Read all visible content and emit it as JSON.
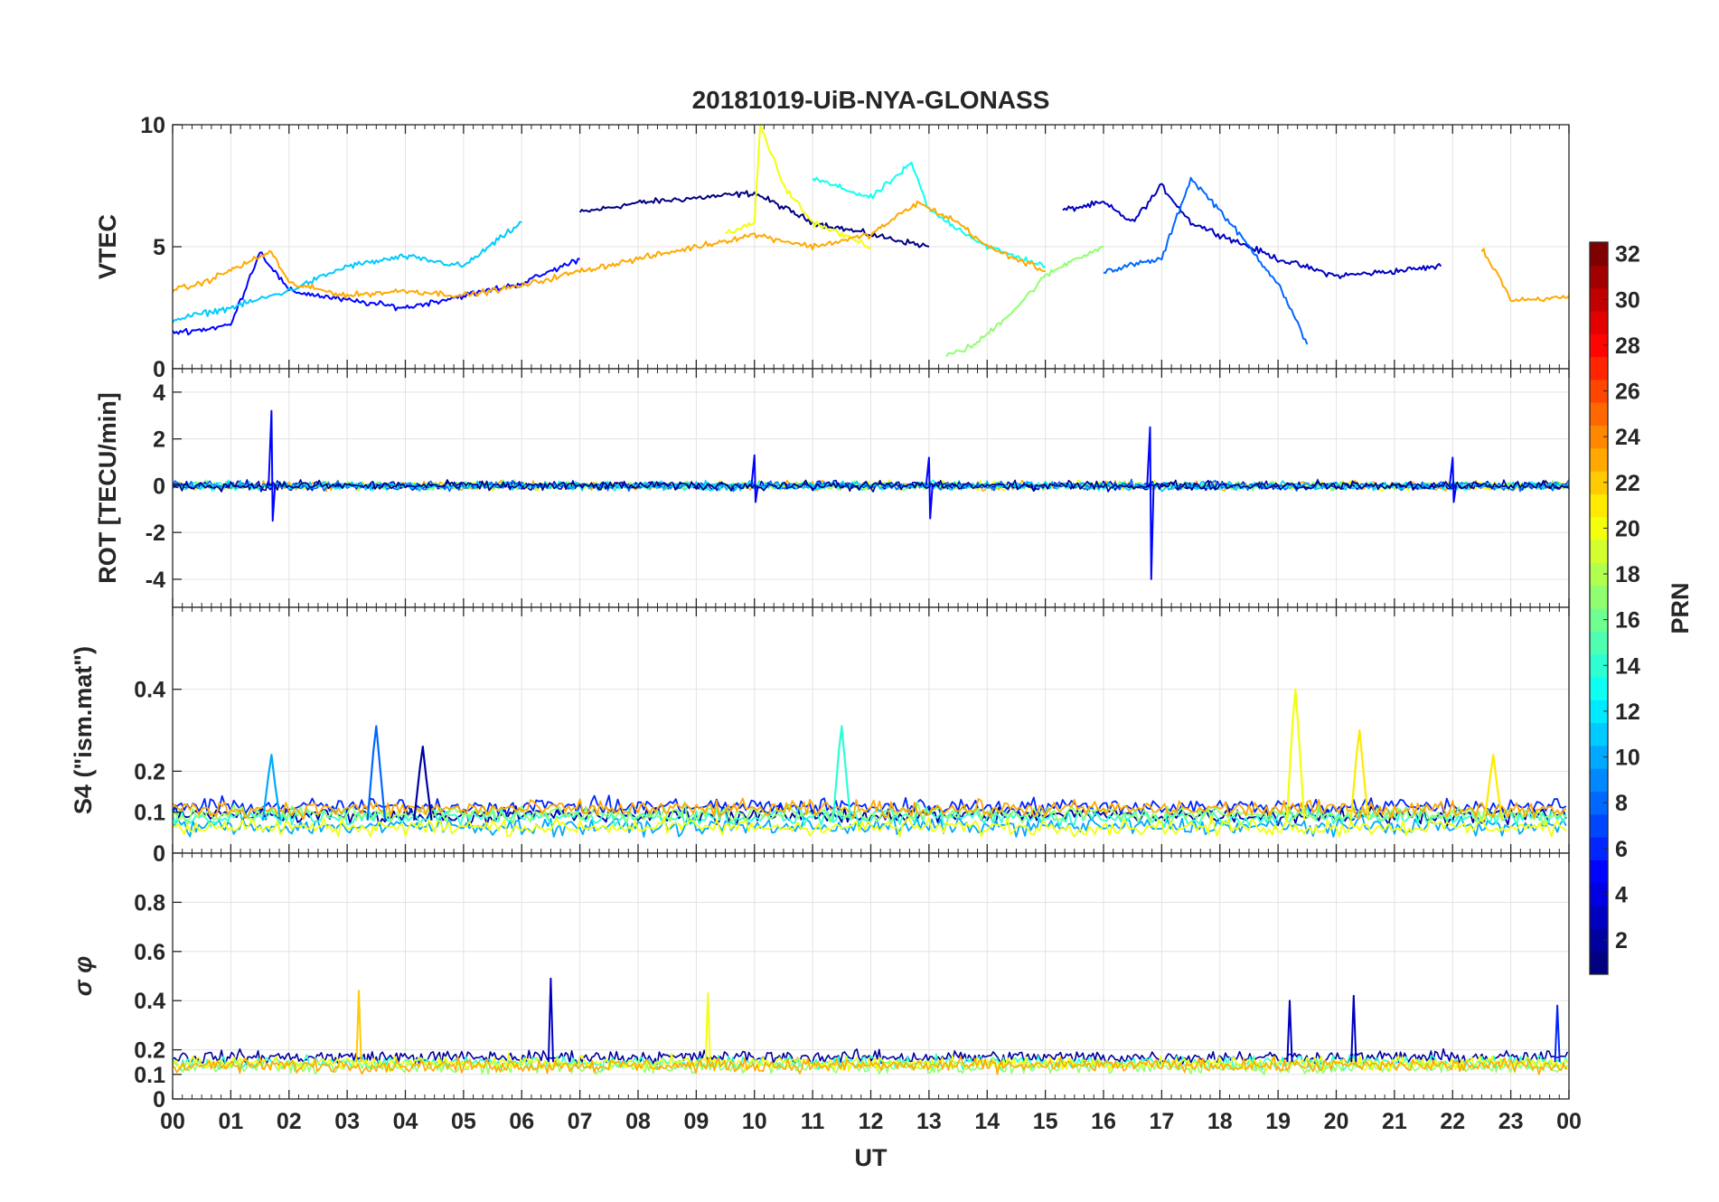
{
  "figure": {
    "title": "20181019-UiB-NYA-GLONASS",
    "xlabel": "UT",
    "x_ticks": [
      "00",
      "01",
      "02",
      "03",
      "04",
      "05",
      "06",
      "07",
      "08",
      "09",
      "10",
      "11",
      "12",
      "13",
      "14",
      "15",
      "16",
      "17",
      "18",
      "19",
      "20",
      "21",
      "22",
      "23",
      "00"
    ]
  },
  "colorbar": {
    "label": "PRN",
    "range": [
      1,
      32
    ],
    "ticks": [
      2,
      4,
      6,
      8,
      10,
      12,
      14,
      16,
      18,
      20,
      22,
      24,
      26,
      28,
      30,
      32
    ],
    "colormap": "jet",
    "levels": 32
  },
  "chart_data": [
    {
      "type": "line",
      "name": "vtec",
      "ylabel": "VTEC",
      "ylim": [
        0,
        10
      ],
      "yticks": [
        0,
        5,
        10
      ],
      "grid": true,
      "x_range_hours": [
        0,
        24
      ],
      "series_note": "multiple PRN traces (GLONASS), colored by PRN",
      "series": [
        {
          "prn": 1,
          "x": [
            7.0,
            8,
            9,
            10,
            11,
            12,
            13
          ],
          "values": [
            6.4,
            6.8,
            7.0,
            7.2,
            6.0,
            5.5,
            5.0
          ]
        },
        {
          "prn": 3,
          "x": [
            15.3,
            16,
            16.5,
            17,
            17.5,
            18,
            19,
            20,
            21,
            21.8
          ],
          "values": [
            6.5,
            6.8,
            6.0,
            7.5,
            6.0,
            5.5,
            4.5,
            3.8,
            4.0,
            4.2
          ]
        },
        {
          "prn": 5,
          "x": [
            0,
            0.5,
            1,
            1.5,
            2,
            2.5,
            3,
            4,
            5,
            6,
            7
          ],
          "values": [
            1.5,
            1.6,
            1.8,
            4.8,
            3.2,
            3.0,
            2.8,
            2.5,
            3.0,
            3.5,
            4.5
          ]
        },
        {
          "prn": 8,
          "x": [
            16,
            17,
            17.5,
            18,
            18.5,
            19,
            19.5
          ],
          "values": [
            4.0,
            4.5,
            7.8,
            6.5,
            5.0,
            3.5,
            1.0
          ]
        },
        {
          "prn": 11,
          "x": [
            0,
            1,
            2,
            3,
            4,
            5,
            6
          ],
          "values": [
            2.0,
            2.5,
            3.2,
            4.2,
            4.6,
            4.2,
            6.0
          ]
        },
        {
          "prn": 13,
          "x": [
            11,
            12,
            12.7,
            13,
            14,
            15
          ],
          "values": [
            7.8,
            7.0,
            8.4,
            6.5,
            5.0,
            4.2
          ]
        },
        {
          "prn": 17,
          "x": [
            13.3,
            13.8,
            14.5,
            15,
            15.5,
            16
          ],
          "values": [
            0.5,
            1.0,
            2.5,
            3.8,
            4.5,
            5.0
          ]
        },
        {
          "prn": 20,
          "x": [
            9.5,
            10,
            10.1,
            10.5,
            11,
            12
          ],
          "values": [
            5.5,
            6.0,
            10.0,
            7.5,
            6.0,
            5.0
          ]
        },
        {
          "prn": 23,
          "x": [
            0,
            0.5,
            1.7,
            2,
            3,
            4,
            5,
            6,
            7,
            8,
            9,
            10,
            11,
            12,
            12.8,
            13.5,
            14,
            15
          ],
          "values": [
            3.2,
            3.5,
            4.8,
            3.5,
            3.0,
            3.2,
            3.0,
            3.4,
            4.0,
            4.5,
            5.0,
            5.5,
            5.0,
            5.5,
            6.8,
            6.0,
            5.0,
            4.0
          ]
        },
        {
          "prn": 23,
          "x": [
            22.5,
            22.8,
            23,
            23.5,
            24
          ],
          "values": [
            4.9,
            3.8,
            2.8,
            2.8,
            3.0
          ]
        }
      ]
    },
    {
      "type": "line",
      "name": "rot",
      "ylabel": "ROT [TECU/min]",
      "ylim": [
        -5.2,
        5
      ],
      "yticks": [
        -4,
        -2,
        0,
        2,
        4
      ],
      "grid": true,
      "series_note": "rate of TEC, mostly within ±0.5 with spikes",
      "spikes": [
        {
          "x": 1.7,
          "max": 3.2,
          "min": -1.5
        },
        {
          "x": 10.0,
          "max": 1.3,
          "min": -0.7
        },
        {
          "x": 13.0,
          "max": 1.2,
          "min": -1.4
        },
        {
          "x": 16.8,
          "max": 2.5,
          "min": -4.0
        },
        {
          "x": 22.0,
          "max": 1.2,
          "min": -0.7
        }
      ]
    },
    {
      "type": "line",
      "name": "s4",
      "ylabel": "S4 (\"ism.mat\")",
      "ylim": [
        0,
        0.6
      ],
      "yticks": [
        0,
        0.1,
        0.2,
        0.4
      ],
      "grid": true,
      "series_note": "amplitude scintillation, baseline ~0.05-0.15 with peaks",
      "peaks": [
        {
          "x": 1.7,
          "value": 0.24,
          "prn": 10
        },
        {
          "x": 3.5,
          "value": 0.31,
          "prn": 8
        },
        {
          "x": 4.3,
          "value": 0.26,
          "prn": 2
        },
        {
          "x": 11.5,
          "value": 0.31,
          "prn": 14
        },
        {
          "x": 19.3,
          "value": 0.4,
          "prn": 20
        },
        {
          "x": 20.4,
          "value": 0.3,
          "prn": 21
        },
        {
          "x": 22.7,
          "value": 0.24,
          "prn": 21
        }
      ]
    },
    {
      "type": "line",
      "name": "sigma_phi",
      "ylabel": "σ φ",
      "ylim": [
        0,
        1
      ],
      "yticks": [
        0,
        0.1,
        0.2,
        0.4,
        0.6,
        0.8
      ],
      "grid": true,
      "series_note": "phase scintillation, baseline ~0.1-0.25 with peaks",
      "peaks": [
        {
          "x": 3.2,
          "value": 0.44,
          "prn": 22
        },
        {
          "x": 6.5,
          "value": 0.49,
          "prn": 3
        },
        {
          "x": 9.2,
          "value": 0.43,
          "prn": 20
        },
        {
          "x": 19.2,
          "value": 0.4,
          "prn": 3
        },
        {
          "x": 20.3,
          "value": 0.42,
          "prn": 3
        },
        {
          "x": 23.8,
          "value": 0.38,
          "prn": 6
        }
      ]
    }
  ]
}
